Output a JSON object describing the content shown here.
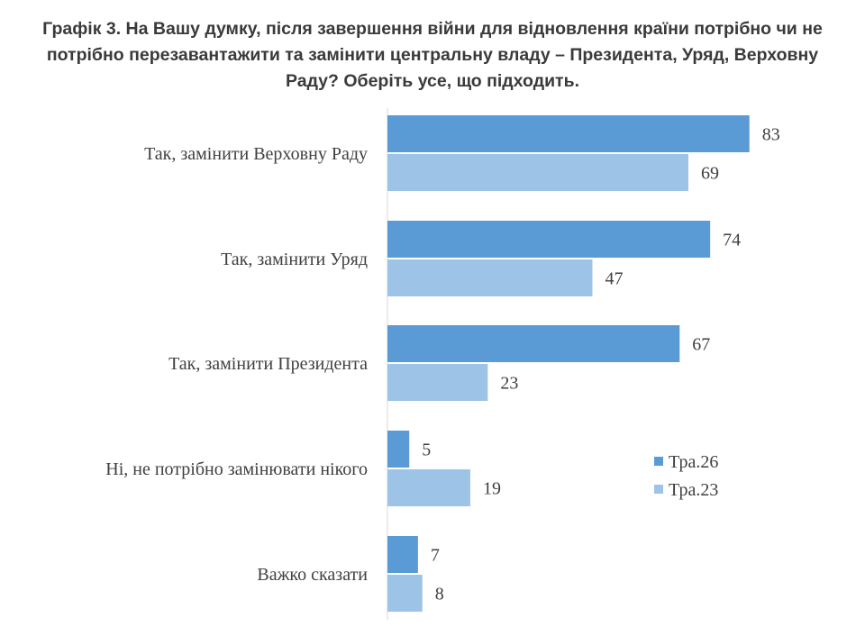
{
  "title_lines": [
    "Графік 3. На Вашу думку, після завершення війни для відновлення країни потрібно чи не",
    "потрібно перезавантажити та замінити центральну владу – Президента, Уряд, Верховну",
    "Раду? Оберіть усе, що підходить."
  ],
  "chart_data": {
    "type": "bar",
    "orientation": "horizontal",
    "title": "Графік 3. На Вашу думку, після завершення війни для відновлення країни потрібно чи не потрібно перезавантажити та замінити центральну владу – Президента, Уряд, Верховну Раду? Оберіть усе, що підходить.",
    "categories": [
      "Так, замінити Верховну Раду",
      "Так, замінити Уряд",
      "Так, замінити Президента",
      "Ні, не потрібно замінювати нікого",
      "Важко сказати"
    ],
    "series": [
      {
        "name": "Тра.26",
        "color": "#5b9bd5",
        "values": [
          83,
          74,
          67,
          5,
          7
        ]
      },
      {
        "name": "Тра.23",
        "color": "#9dc3e6",
        "values": [
          69,
          47,
          23,
          19,
          8
        ]
      }
    ],
    "xlim": [
      0,
      100
    ],
    "grid": false,
    "legend_position": "right"
  }
}
